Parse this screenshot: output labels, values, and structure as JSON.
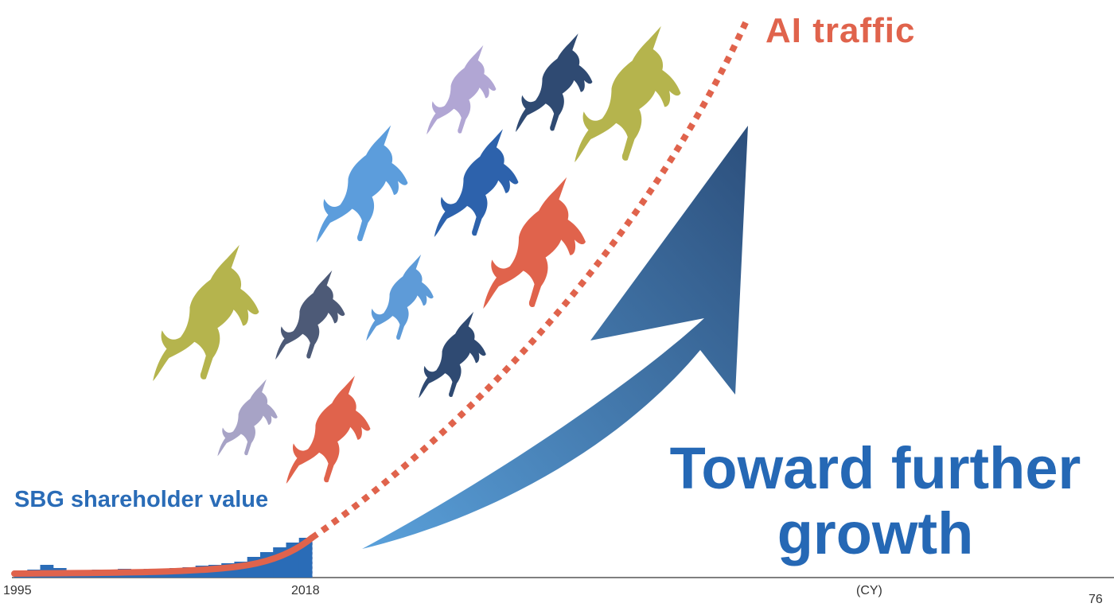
{
  "headline": {
    "line1": "Toward further",
    "line2": "growth"
  },
  "series_labels": {
    "ai": "AI traffic",
    "sbg": "SBG shareholder value"
  },
  "axis": {
    "start": "1995",
    "end": "2018",
    "unit": "(CY)"
  },
  "page_number": "76",
  "colors": {
    "ai_traffic": "#e0634c",
    "sbg_bars": "#2a6cb7",
    "headline": "#2568b5",
    "arrow_light": "#5aa1db",
    "arrow_dark": "#2c4f7c"
  },
  "unicorns": [
    {
      "color": "#b1a6d4"
    },
    {
      "color": "#2f4a72"
    },
    {
      "color": "#b5b44d"
    },
    {
      "color": "#5c9ddc"
    },
    {
      "color": "#2d62ac"
    },
    {
      "color": "#e0634c"
    },
    {
      "color": "#b5b44d"
    },
    {
      "color": "#4d5a77"
    },
    {
      "color": "#5e9bd8"
    },
    {
      "color": "#2f4a72"
    },
    {
      "color": "#a7a3c6"
    },
    {
      "color": "#e0634c"
    }
  ]
}
